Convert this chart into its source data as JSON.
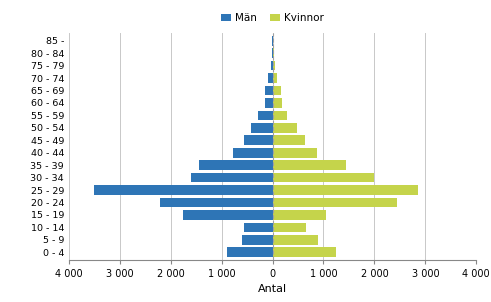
{
  "age_groups": [
    "0 - 4",
    "5 - 9",
    "10 - 14",
    "15 - 19",
    "20 - 24",
    "25 - 29",
    "30 - 34",
    "35 - 39",
    "40 - 44",
    "45 - 49",
    "50 - 54",
    "55 - 59",
    "60 - 64",
    "65 - 69",
    "70 - 74",
    "75 - 79",
    "80 - 84",
    "85 -"
  ],
  "men": [
    900,
    600,
    550,
    1750,
    2200,
    3500,
    1600,
    1450,
    780,
    560,
    420,
    280,
    150,
    155,
    80,
    35,
    10,
    5
  ],
  "women": [
    1250,
    900,
    650,
    1050,
    2450,
    2850,
    2000,
    1450,
    870,
    630,
    480,
    290,
    180,
    165,
    90,
    55,
    20,
    5
  ],
  "men_color": "#2E75B6",
  "women_color": "#C5D44B",
  "xlabel": "Antal",
  "legend_men": "Män",
  "legend_women": "Kvinnor",
  "xlim": 4000,
  "background_color": "#ffffff",
  "grid_color": "#c8c8c8",
  "dashed_line_color": "#a0a0a0"
}
